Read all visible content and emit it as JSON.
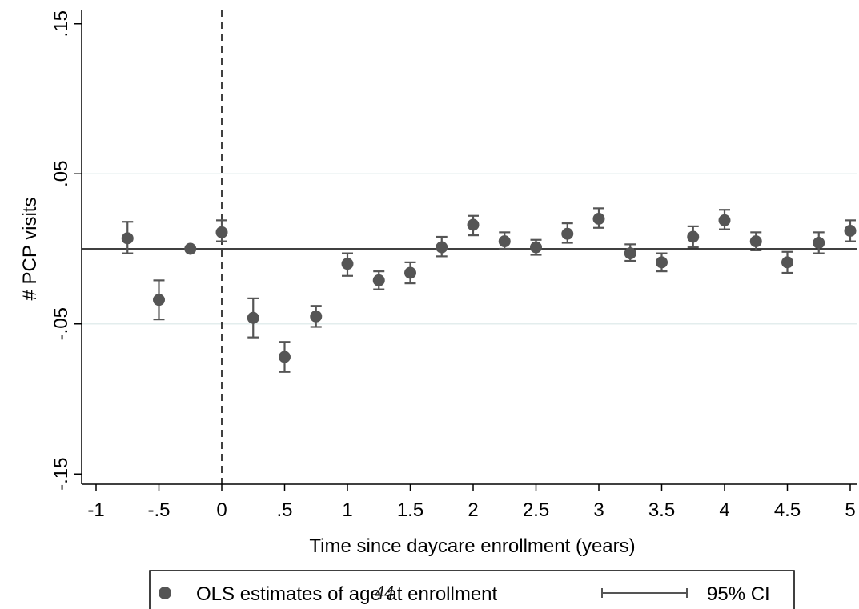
{
  "page_number": "44",
  "chart_data": {
    "type": "scatter",
    "xlabel": "Time since daycare enrollment (years)",
    "ylabel": "# PCP visits",
    "xlim": [
      -1,
      5
    ],
    "ylim": [
      -0.15,
      0.15
    ],
    "x_tick_labels": [
      "-1",
      "-.5",
      "0",
      ".5",
      "1",
      "1.5",
      "2",
      "2.5",
      "3",
      "3.5",
      "4",
      "4.5",
      "5"
    ],
    "x_tick_values": [
      -1,
      -0.5,
      0,
      0.5,
      1,
      1.5,
      2,
      2.5,
      3,
      3.5,
      4,
      4.5,
      5
    ],
    "y_tick_labels": [
      ".15",
      ".05",
      "-.05",
      "-.15"
    ],
    "y_tick_values": [
      0.15,
      0.05,
      -0.05,
      -0.15
    ],
    "reference_lines": {
      "horizontal_y": 0,
      "vertical_x": 0,
      "vertical_style": "dashed"
    },
    "grid": "horizontal",
    "legend_position": "bottom",
    "colors": {
      "marker": "#555555",
      "ci": "#555555",
      "grid": "#e3eded",
      "axis": "#000000"
    },
    "series": [
      {
        "name": "OLS estimates of age at enrollment",
        "x": [
          -0.75,
          -0.5,
          -0.25,
          0,
          0.25,
          0.5,
          0.75,
          1,
          1.25,
          1.5,
          1.75,
          2,
          2.25,
          2.5,
          2.75,
          3,
          3.25,
          3.5,
          3.75,
          4,
          4.25,
          4.5,
          4.75,
          5
        ],
        "y": [
          0.007,
          -0.034,
          0,
          0.011,
          -0.046,
          -0.072,
          -0.045,
          -0.01,
          -0.021,
          -0.016,
          0.001,
          0.016,
          0.005,
          0.001,
          0.01,
          0.02,
          -0.003,
          -0.009,
          0.008,
          0.019,
          0.005,
          -0.009,
          0.004,
          0.012
        ],
        "ci_low": [
          -0.003,
          -0.047,
          0,
          0.005,
          -0.059,
          -0.082,
          -0.052,
          -0.018,
          -0.027,
          -0.023,
          -0.005,
          0.009,
          0.0,
          -0.004,
          0.004,
          0.014,
          -0.008,
          -0.015,
          0.001,
          0.013,
          -0.001,
          -0.016,
          -0.003,
          0.005
        ],
        "ci_high": [
          0.018,
          -0.021,
          0,
          0.019,
          -0.033,
          -0.062,
          -0.038,
          -0.003,
          -0.015,
          -0.009,
          0.008,
          0.022,
          0.011,
          0.006,
          0.017,
          0.027,
          0.003,
          -0.003,
          0.015,
          0.026,
          0.011,
          -0.002,
          0.011,
          0.019
        ]
      }
    ],
    "legend": [
      {
        "label": "OLS estimates of age at enrollment",
        "symbol": "dot"
      },
      {
        "label": "95% CI",
        "symbol": "range-bar"
      }
    ]
  }
}
